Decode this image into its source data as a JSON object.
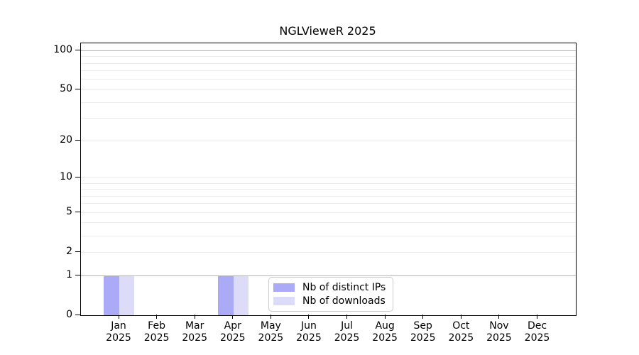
{
  "title": "NGLVieweR 2025",
  "chart_data": {
    "type": "bar",
    "title": "NGLVieweR 2025",
    "categories": [
      "Jan",
      "Feb",
      "Mar",
      "Apr",
      "May",
      "Jun",
      "Jul",
      "Aug",
      "Sep",
      "Oct",
      "Nov",
      "Dec"
    ],
    "year_label": "2025",
    "series": [
      {
        "name": "Nb of distinct IPs",
        "color": "#aaaaf6",
        "values": [
          1,
          0,
          0,
          1,
          0,
          0,
          0,
          0,
          0,
          0,
          0,
          0
        ]
      },
      {
        "name": "Nb of downloads",
        "color": "#dcdcf8",
        "values": [
          1,
          0,
          0,
          1,
          0,
          0,
          0,
          0,
          0,
          0,
          0,
          0
        ]
      }
    ],
    "yscale": "log1p",
    "yticks": [
      0,
      1,
      2,
      5,
      10,
      20,
      50,
      100
    ],
    "minor_gridlines": [
      2,
      3,
      4,
      5,
      6,
      7,
      8,
      9,
      10,
      20,
      30,
      40,
      50,
      60,
      70,
      80,
      90
    ],
    "major_gridlines": [
      1,
      100
    ],
    "ylim": [
      0,
      112
    ],
    "xlabel": "",
    "ylabel": "",
    "grid": true,
    "legend_position": "lower center"
  },
  "colors": {
    "axis": "#000000",
    "minor_grid": "#ececec",
    "major_grid": "#b3b3b3",
    "legend_border": "#cccccc",
    "background": "#ffffff"
  }
}
